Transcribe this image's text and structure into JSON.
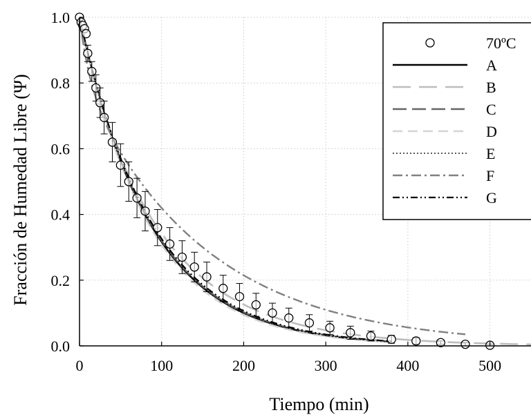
{
  "chart_data": {
    "type": "scatter",
    "xlabel": "Tiempo (min)",
    "ylabel": "Fracción de Humedad Libre (Ψ)",
    "xlim": [
      0,
      550
    ],
    "ylim": [
      0,
      1.0
    ],
    "x_ticks": [
      0,
      100,
      200,
      300,
      400,
      500
    ],
    "x_tick_labels": [
      "0",
      "100",
      "200",
      "300",
      "400",
      "500"
    ],
    "y_ticks": [
      0,
      0.2,
      0.4,
      0.6,
      0.8,
      1.0
    ],
    "y_tick_labels": [
      "0.0",
      "0.2",
      "0.4",
      "0.6",
      "0.8",
      "1.0"
    ],
    "grid": true,
    "legend_position": "top-right",
    "observed": {
      "name": "70ºC",
      "x": [
        0,
        2,
        4,
        6,
        8,
        10,
        15,
        20,
        25,
        30,
        40,
        50,
        60,
        70,
        80,
        95,
        110,
        125,
        140,
        155,
        175,
        195,
        215,
        235,
        255,
        280,
        305,
        330,
        355,
        380,
        410,
        440,
        470,
        500
      ],
      "y": [
        1.0,
        0.985,
        0.975,
        0.965,
        0.95,
        0.89,
        0.835,
        0.785,
        0.74,
        0.695,
        0.62,
        0.55,
        0.5,
        0.45,
        0.41,
        0.36,
        0.31,
        0.27,
        0.24,
        0.21,
        0.175,
        0.15,
        0.125,
        0.1,
        0.085,
        0.07,
        0.055,
        0.04,
        0.03,
        0.02,
        0.015,
        0.01,
        0.005,
        0.002
      ],
      "err": [
        0,
        0,
        0,
        0,
        0,
        0.025,
        0.03,
        0.04,
        0.045,
        0.05,
        0.06,
        0.065,
        0.06,
        0.06,
        0.06,
        0.055,
        0.05,
        0.05,
        0.045,
        0.045,
        0.04,
        0.04,
        0.035,
        0.03,
        0.03,
        0.025,
        0.02,
        0.02,
        0.015,
        0.012,
        0.01,
        0.005,
        0.005,
        0.003
      ]
    },
    "series": [
      {
        "name": "A",
        "model": "power",
        "k": 0.0115,
        "n": 1.0,
        "a": 1.0,
        "xmax": 380,
        "color": "#000000",
        "dash": "",
        "width": 2.6
      },
      {
        "name": "B",
        "model": "power",
        "k": 0.0135,
        "n": 0.95,
        "a": 1.0,
        "xmax": 550,
        "color": "#bdbdbd",
        "dash": "26 12",
        "width": 2.6
      },
      {
        "name": "C",
        "model": "power",
        "k": 0.0114,
        "n": 1.0,
        "a": 1.0,
        "xmax": 380,
        "color": "#666666",
        "dash": "20 8",
        "width": 2.6
      },
      {
        "name": "D",
        "model": "power",
        "k": 0.0118,
        "n": 1.0,
        "a": 1.0,
        "xmax": 380,
        "color": "#d4d4d4",
        "dash": "14 8",
        "width": 2.6
      },
      {
        "name": "E",
        "model": "power",
        "k": 0.0115,
        "n": 1.0,
        "a": 1.0,
        "xmax": 380,
        "color": "#222222",
        "dash": "2 3",
        "width": 1.6
      },
      {
        "name": "F",
        "model": "twoterm",
        "a1": 0.18,
        "k1": 0.08,
        "a2": 0.82,
        "k2": 0.0067,
        "xmax": 470,
        "color": "#808080",
        "dash": "14 5 3 5",
        "width": 2.4
      },
      {
        "name": "G",
        "model": "power",
        "k": 0.0112,
        "n": 1.0,
        "a": 1.0,
        "xmax": 380,
        "color": "#000000",
        "dash": "10 4 2 4 2 4",
        "width": 2.2
      }
    ]
  }
}
